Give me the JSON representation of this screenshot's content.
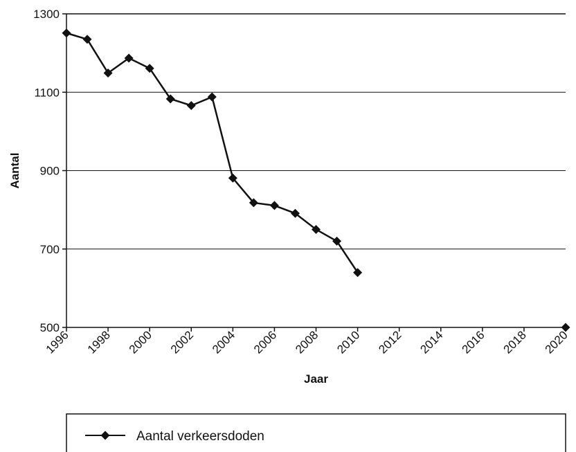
{
  "chart_data": {
    "type": "line",
    "title": "",
    "xlabel": "Jaar",
    "ylabel": "Aantal",
    "xlim": [
      1996,
      2020
    ],
    "ylim": [
      500,
      1300
    ],
    "x_ticks": [
      "1996",
      "1998",
      "2000",
      "2002",
      "2004",
      "2006",
      "2008",
      "2010",
      "2012",
      "2014",
      "2016",
      "2018",
      "2020"
    ],
    "y_ticks": [
      "500",
      "700",
      "900",
      "1100",
      "1300"
    ],
    "grid": "horizontal",
    "legend": "bottom",
    "series": [
      {
        "name": "Aantal verkeersdoden",
        "color": "#111111",
        "marker": "diamond",
        "x": [
          1996,
          1997,
          1998,
          1999,
          2000,
          2001,
          2002,
          2003,
          2004,
          2005,
          2006,
          2007,
          2008,
          2009,
          2010
        ],
        "y": [
          1251,
          1235,
          1149,
          1187,
          1161,
          1083,
          1066,
          1088,
          881,
          818,
          811,
          791,
          750,
          720,
          640
        ]
      },
      {
        "name": "",
        "color": "#111111",
        "marker": "diamond",
        "line": false,
        "x": [
          2020
        ],
        "y": [
          500
        ]
      }
    ]
  }
}
